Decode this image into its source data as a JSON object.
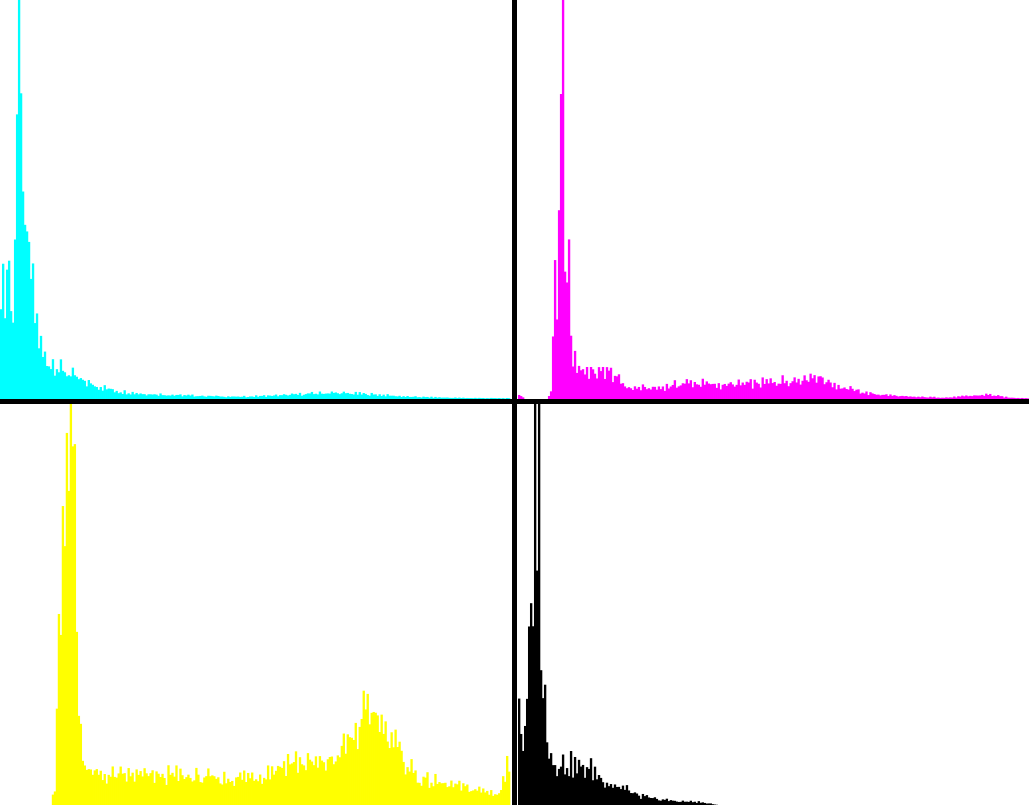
{
  "chart_data": [
    {
      "type": "bar",
      "channel": "cyan",
      "color": "#00ffff",
      "x": [
        0,
        255
      ],
      "ylim": [
        0,
        1
      ],
      "grid": false,
      "profile": [
        [
          0,
          0.3
        ],
        [
          2,
          0.26
        ],
        [
          4,
          0.37
        ],
        [
          6,
          0.18
        ],
        [
          8,
          0.78
        ],
        [
          9,
          1.0
        ],
        [
          10,
          0.62
        ],
        [
          11,
          0.42
        ],
        [
          12,
          0.52
        ],
        [
          13,
          0.35
        ],
        [
          14,
          0.34
        ],
        [
          16,
          0.28
        ],
        [
          18,
          0.2
        ],
        [
          20,
          0.14
        ],
        [
          22,
          0.11
        ],
        [
          24,
          0.1
        ],
        [
          26,
          0.1
        ],
        [
          28,
          0.09
        ],
        [
          30,
          0.08
        ],
        [
          34,
          0.07
        ],
        [
          40,
          0.05
        ],
        [
          46,
          0.04
        ],
        [
          52,
          0.03
        ],
        [
          60,
          0.02
        ],
        [
          70,
          0.015
        ],
        [
          90,
          0.01
        ],
        [
          120,
          0.006
        ],
        [
          140,
          0.01
        ],
        [
          165,
          0.017
        ],
        [
          185,
          0.013
        ],
        [
          205,
          0.006
        ],
        [
          230,
          0.003
        ],
        [
          255,
          0.002
        ]
      ],
      "spikes": [
        [
          9,
          1.0
        ],
        [
          11,
          0.52
        ],
        [
          13,
          0.42
        ]
      ]
    },
    {
      "type": "bar",
      "channel": "magenta",
      "color": "#ff00ff",
      "x": [
        0,
        255
      ],
      "ylim": [
        0,
        1
      ],
      "grid": false,
      "profile": [
        [
          0,
          0.012
        ],
        [
          3,
          0.0
        ],
        [
          14,
          0.0
        ],
        [
          16,
          0.02
        ],
        [
          17,
          0.22
        ],
        [
          18,
          0.28
        ],
        [
          19,
          0.22
        ],
        [
          20,
          0.4
        ],
        [
          21,
          0.65
        ],
        [
          22,
          0.35
        ],
        [
          23,
          0.3
        ],
        [
          24,
          0.24
        ],
        [
          25,
          0.2
        ],
        [
          26,
          0.14
        ],
        [
          28,
          0.1
        ],
        [
          32,
          0.08
        ],
        [
          40,
          0.07
        ],
        [
          44,
          0.08
        ],
        [
          48,
          0.06
        ],
        [
          55,
          0.03
        ],
        [
          70,
          0.03
        ],
        [
          85,
          0.045
        ],
        [
          100,
          0.038
        ],
        [
          120,
          0.042
        ],
        [
          140,
          0.055
        ],
        [
          148,
          0.065
        ],
        [
          152,
          0.055
        ],
        [
          160,
          0.035
        ],
        [
          175,
          0.015
        ],
        [
          195,
          0.006
        ],
        [
          215,
          0.004
        ],
        [
          235,
          0.012
        ],
        [
          245,
          0.004
        ],
        [
          255,
          0.002
        ]
      ],
      "spikes": [
        [
          22,
          1.0
        ],
        [
          25,
          0.4
        ]
      ]
    },
    {
      "type": "bar",
      "channel": "yellow",
      "color": "#ffff00",
      "x": [
        0,
        255
      ],
      "ylim": [
        0,
        1
      ],
      "grid": false,
      "profile": [
        [
          0,
          0.0
        ],
        [
          25,
          0.0
        ],
        [
          27,
          0.05
        ],
        [
          29,
          0.42
        ],
        [
          31,
          0.7
        ],
        [
          33,
          0.98
        ],
        [
          35,
          0.87
        ],
        [
          37,
          0.74
        ],
        [
          38,
          0.44
        ],
        [
          39,
          0.28
        ],
        [
          41,
          0.14
        ],
        [
          44,
          0.09
        ],
        [
          50,
          0.08
        ],
        [
          60,
          0.08
        ],
        [
          70,
          0.08
        ],
        [
          90,
          0.08
        ],
        [
          110,
          0.07
        ],
        [
          130,
          0.08
        ],
        [
          145,
          0.12
        ],
        [
          160,
          0.11
        ],
        [
          168,
          0.13
        ],
        [
          180,
          0.21
        ],
        [
          186,
          0.27
        ],
        [
          193,
          0.22
        ],
        [
          200,
          0.14
        ],
        [
          210,
          0.07
        ],
        [
          230,
          0.05
        ],
        [
          250,
          0.03
        ],
        [
          253,
          0.08
        ],
        [
          255,
          0.12
        ]
      ],
      "spikes": [
        [
          35,
          1.0
        ],
        [
          37,
          0.9
        ]
      ]
    },
    {
      "type": "bar",
      "channel": "black",
      "color": "#000000",
      "x": [
        0,
        255
      ],
      "ylim": [
        0,
        1
      ],
      "grid": false,
      "profile": [
        [
          0,
          0.3
        ],
        [
          2,
          0.15
        ],
        [
          4,
          0.25
        ],
        [
          5,
          0.37
        ],
        [
          7,
          0.55
        ],
        [
          8,
          0.9
        ],
        [
          9,
          0.75
        ],
        [
          10,
          0.45
        ],
        [
          11,
          0.3
        ],
        [
          12,
          0.25
        ],
        [
          14,
          0.2
        ],
        [
          16,
          0.13
        ],
        [
          20,
          0.11
        ],
        [
          25,
          0.11
        ],
        [
          30,
          0.1
        ],
        [
          35,
          0.1
        ],
        [
          40,
          0.08
        ],
        [
          45,
          0.06
        ],
        [
          50,
          0.05
        ],
        [
          55,
          0.04
        ],
        [
          60,
          0.025
        ],
        [
          65,
          0.02
        ],
        [
          70,
          0.015
        ],
        [
          80,
          0.01
        ],
        [
          90,
          0.008
        ],
        [
          100,
          0.0
        ],
        [
          255,
          0.0
        ]
      ],
      "spikes": [
        [
          10,
          1.0
        ],
        [
          13,
          0.3
        ]
      ]
    }
  ]
}
